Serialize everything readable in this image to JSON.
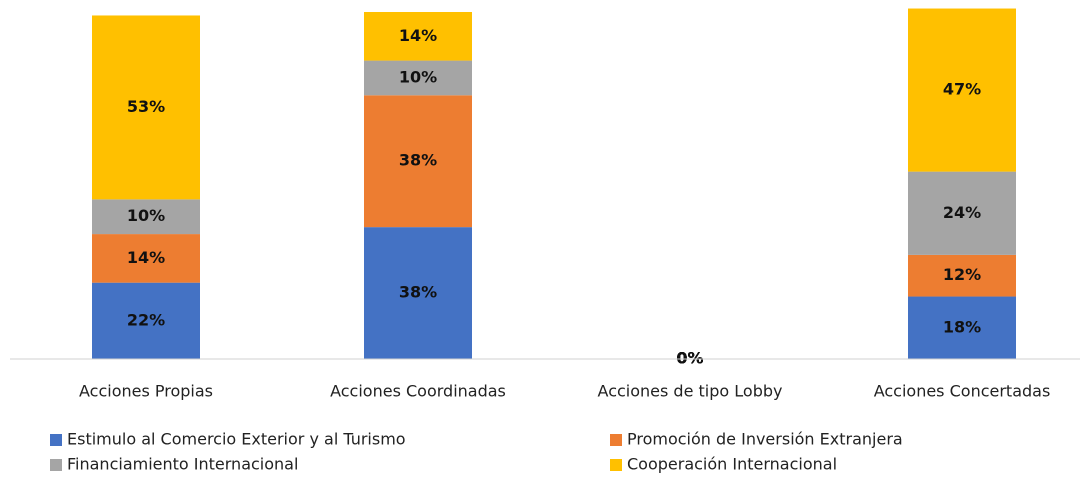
{
  "chart_data": {
    "type": "stacked_bar",
    "categories": [
      "Acciones Propias",
      "Acciones Coordinadas",
      "Acciones de tipo Lobby",
      "Acciones Concertadas"
    ],
    "series": [
      {
        "name": "Estimulo al Comercio Exterior y al Turismo",
        "color": "#4472c4",
        "values": [
          22,
          38,
          0,
          18
        ],
        "value_labels": [
          "22%",
          "38%",
          "0%",
          "18%"
        ]
      },
      {
        "name": "Promoción de Inversión Extranjera",
        "color": "#ed7d31",
        "values": [
          14,
          38,
          0,
          12
        ],
        "value_labels": [
          "14%",
          "38%",
          "0%",
          "12%"
        ]
      },
      {
        "name": "Financiamiento Internacional",
        "color": "#a5a5a5",
        "values": [
          10,
          10,
          0,
          24
        ],
        "value_labels": [
          "10%",
          "10%",
          "0%",
          "24%"
        ]
      },
      {
        "name": "Cooperación Internacional",
        "color": "#ffc000",
        "values": [
          53,
          14,
          0,
          47
        ],
        "value_labels": [
          "53%",
          "14%",
          "0%",
          "47%"
        ]
      }
    ],
    "ylim": [
      0,
      100
    ]
  }
}
